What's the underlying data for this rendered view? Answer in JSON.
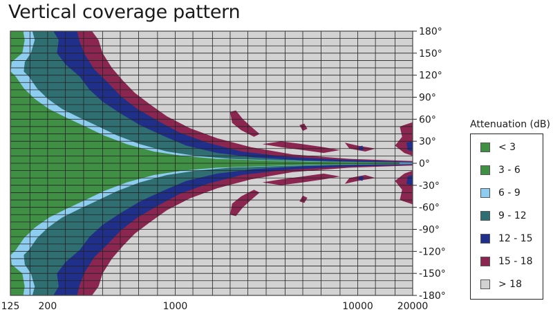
{
  "chart_data": {
    "type": "heatmap",
    "title": "Vertical coverage pattern",
    "x_scale": "log",
    "xlim": [
      125,
      20000
    ],
    "x_tick_labels": [
      {
        "value": 125,
        "label": "125"
      },
      {
        "value": 200,
        "label": "200"
      },
      {
        "value": 1000,
        "label": "1000"
      },
      {
        "value": 10000,
        "label": "10000"
      },
      {
        "value": 20000,
        "label": "20000"
      }
    ],
    "x_minor_ticks": [
      160,
      250,
      315,
      400,
      500,
      630,
      800,
      1250,
      1600,
      2000,
      2500,
      3150,
      4000,
      5000,
      6300,
      8000,
      12500,
      16000
    ],
    "ylim": [
      -180,
      180
    ],
    "y_tick_labels": [
      "180°",
      "150°",
      "120°",
      "90°",
      "60°",
      "30°",
      "0°",
      "-30°",
      "-60°",
      "-90°",
      "-120°",
      "-150°",
      "-180°"
    ],
    "y_tick_values": [
      180,
      150,
      120,
      90,
      60,
      30,
      0,
      -30,
      -60,
      -90,
      -120,
      -150,
      -180
    ],
    "y_minor_step": 10,
    "legend_title": "Attenuation (dB)",
    "legend_position": "right",
    "grid": true,
    "plot_border_color": "#444444",
    "grid_color": "#222222",
    "levels": [
      {
        "label": "< 3",
        "color": "#3f8f45"
      },
      {
        "label": "3 - 6",
        "color": "#3f8f45"
      },
      {
        "label": "6 - 9",
        "color": "#8ecdf0"
      },
      {
        "label": "9 - 12",
        "color": "#2f6f72"
      },
      {
        "label": "12 - 15",
        "color": "#1f2f8a"
      },
      {
        "label": "15 - 18",
        "color": "#8a2650"
      },
      {
        "label": "> 18",
        "color": "#d2d2d2"
      }
    ],
    "boundaries_note": "Each contour lists [frequency_Hz, angle_deg] pairs of the upper lobe edge; the pattern is mirrored for negative angles.",
    "contours": [
      {
        "level": "6 - 9",
        "edge": [
          [
            125,
            180
          ],
          [
            165,
            180
          ],
          [
            170,
            168
          ],
          [
            162,
            150
          ],
          [
            150,
            138
          ],
          [
            148,
            125
          ],
          [
            158,
            118
          ],
          [
            175,
            102
          ],
          [
            200,
            88
          ],
          [
            240,
            74
          ],
          [
            300,
            62
          ],
          [
            380,
            50
          ],
          [
            480,
            38
          ],
          [
            640,
            26
          ],
          [
            900,
            16
          ],
          [
            1300,
            10
          ],
          [
            2000,
            6
          ],
          [
            3500,
            4
          ],
          [
            7000,
            2
          ],
          [
            20000,
            1
          ]
        ]
      },
      {
        "level": "9 - 12",
        "edge": [
          [
            180,
            180
          ],
          [
            215,
            180
          ],
          [
            230,
            168
          ],
          [
            225,
            150
          ],
          [
            250,
            135
          ],
          [
            300,
            118
          ],
          [
            340,
            100
          ],
          [
            400,
            84
          ],
          [
            500,
            68
          ],
          [
            640,
            52
          ],
          [
            850,
            38
          ],
          [
            1150,
            24
          ],
          [
            1700,
            14
          ],
          [
            2700,
            8
          ],
          [
            5000,
            4
          ],
          [
            10000,
            2
          ],
          [
            20000,
            1
          ]
        ]
      },
      {
        "level": "12 - 15",
        "edge": [
          [
            250,
            180
          ],
          [
            290,
            180
          ],
          [
            300,
            165
          ],
          [
            320,
            148
          ],
          [
            360,
            128
          ],
          [
            420,
            112
          ],
          [
            500,
            92
          ],
          [
            620,
            74
          ],
          [
            800,
            58
          ],
          [
            1050,
            42
          ],
          [
            1500,
            28
          ],
          [
            2300,
            16
          ],
          [
            4000,
            9
          ],
          [
            8000,
            5
          ],
          [
            20000,
            2
          ]
        ]
      },
      {
        "level": "15 - 18",
        "edge": [
          [
            320,
            180
          ],
          [
            350,
            180
          ],
          [
            380,
            168
          ],
          [
            400,
            150
          ],
          [
            450,
            130
          ],
          [
            520,
            112
          ],
          [
            600,
            96
          ],
          [
            730,
            80
          ],
          [
            900,
            64
          ],
          [
            1200,
            48
          ],
          [
            1700,
            34
          ],
          [
            2600,
            22
          ],
          [
            4400,
            12
          ],
          [
            9000,
            6
          ],
          [
            20000,
            3
          ]
        ]
      }
    ],
    "islands": [
      {
        "level": "15 - 18",
        "points": [
          [
            2000,
            70
          ],
          [
            2150,
            72
          ],
          [
            2350,
            60
          ],
          [
            2600,
            50
          ],
          [
            2900,
            40
          ],
          [
            2700,
            36
          ],
          [
            2300,
            45
          ],
          [
            2050,
            55
          ]
        ]
      },
      {
        "level": "15 - 18",
        "points": [
          [
            4800,
            52
          ],
          [
            5100,
            54
          ],
          [
            5300,
            47
          ],
          [
            5000,
            44
          ]
        ]
      },
      {
        "level": "15 - 18",
        "points": [
          [
            3000,
            26
          ],
          [
            3800,
            22
          ],
          [
            5000,
            18
          ],
          [
            6500,
            14
          ],
          [
            8000,
            18
          ],
          [
            6500,
            22
          ],
          [
            5000,
            26
          ],
          [
            3800,
            30
          ]
        ]
      },
      {
        "level": "15 - 18",
        "points": [
          [
            8500,
            28
          ],
          [
            10000,
            24
          ],
          [
            12500,
            20
          ],
          [
            11000,
            16
          ],
          [
            9000,
            20
          ]
        ]
      },
      {
        "level": "15 - 18",
        "points": [
          [
            17000,
            50
          ],
          [
            20000,
            56
          ],
          [
            20000,
            10
          ],
          [
            18000,
            14
          ],
          [
            16000,
            24
          ],
          [
            17500,
            36
          ]
        ]
      },
      {
        "level": "12 - 15",
        "points": [
          [
            18500,
            28
          ],
          [
            20000,
            30
          ],
          [
            20000,
            16
          ],
          [
            18800,
            18
          ]
        ]
      },
      {
        "level": "12 - 15",
        "points": [
          [
            10200,
            -18
          ],
          [
            10800,
            -18
          ],
          [
            10600,
            -24
          ],
          [
            10100,
            -22
          ]
        ]
      }
    ]
  }
}
